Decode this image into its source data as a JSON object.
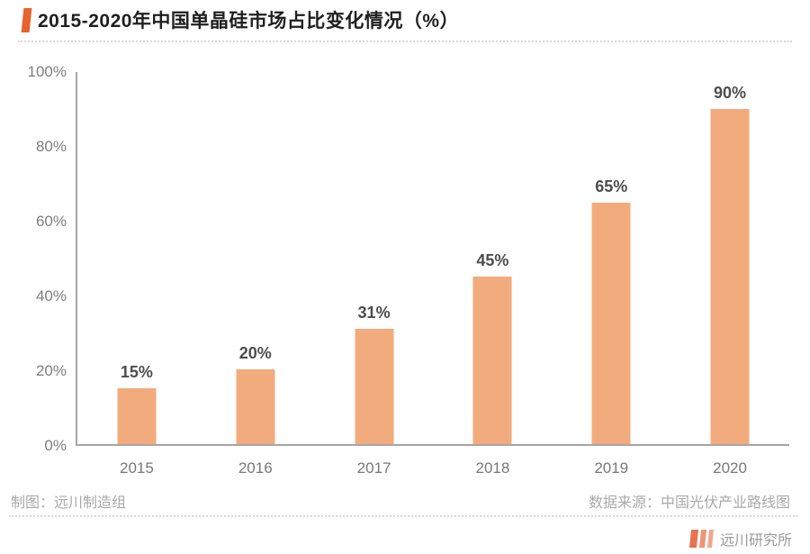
{
  "header": {
    "title": "2015-2020年中国单晶硅市场占比变化情况（%）"
  },
  "chart_data": {
    "type": "bar",
    "title": "2015-2020年中国单晶硅市场占比变化情况（%）",
    "categories": [
      "2015",
      "2016",
      "2017",
      "2018",
      "2019",
      "2020"
    ],
    "values": [
      15,
      20,
      31,
      45,
      65,
      90
    ],
    "value_labels": [
      "15%",
      "20%",
      "31%",
      "45%",
      "65%",
      "90%"
    ],
    "xlabel": "",
    "ylabel": "",
    "ylim": [
      0,
      100
    ],
    "yticks": [
      0,
      20,
      40,
      60,
      80,
      100
    ],
    "ytick_labels": [
      "0%",
      "20%",
      "40%",
      "60%",
      "80%",
      "100%"
    ],
    "grid": false,
    "legend": "none",
    "bar_color": "#F2AB7D"
  },
  "footer": {
    "credit": "制图：远川制造组",
    "source": "数据来源：中国光伏产业路线图",
    "brand": "远川研究所"
  },
  "colors": {
    "accent_marker": "#E7632C",
    "bar": "#F2AB7D",
    "axis": "#A6A6A6",
    "logo_bar_1": "#E77450",
    "logo_bar_2": "#EF9678",
    "logo_bar_3": "#F2A68E"
  }
}
